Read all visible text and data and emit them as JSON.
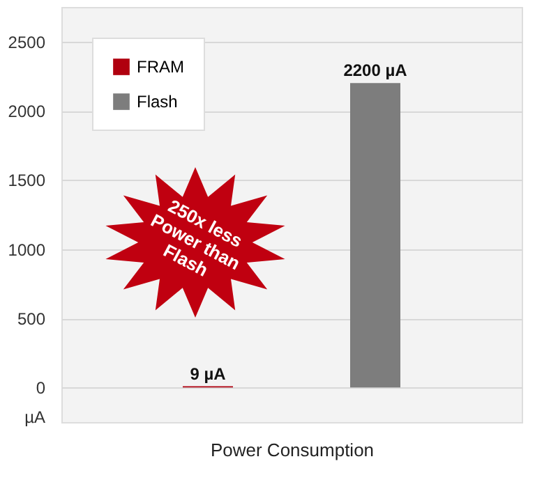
{
  "chart_data": {
    "type": "bar",
    "xlabel": "Power Consumption",
    "ylabel": "µA",
    "categories": [
      null
    ],
    "series": [
      {
        "name": "FRAM",
        "color": "#b0000f",
        "values": [
          9
        ],
        "value_labels": [
          "9 µA"
        ]
      },
      {
        "name": "Flash",
        "color": "#7d7d7d",
        "values": [
          2200
        ],
        "value_labels": [
          "2200 µA"
        ]
      }
    ],
    "ylim": [
      -250,
      2750
    ],
    "yticks": [
      0,
      500,
      1000,
      1500,
      2000,
      2500
    ],
    "grid": "y",
    "legend": "top left",
    "annotations": [
      "250x less Power than Flash"
    ]
  }
}
